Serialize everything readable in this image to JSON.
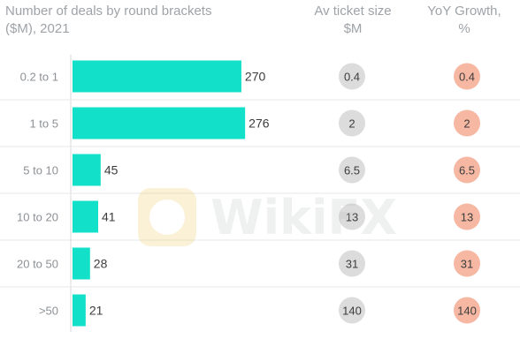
{
  "header": {
    "main_title_line1": "Number of deals by round brackets",
    "main_title_line2": "($M), 2021",
    "ticket_title_line1": "Av ticket size",
    "ticket_title_line2": "$M",
    "growth_title_line1": "YoY Growth,",
    "growth_title_line2": "%"
  },
  "watermark": {
    "text": "WikiFX"
  },
  "colors": {
    "bar": "#12e0c8",
    "ticket_circle": "#dcdcdc",
    "growth_circle": "#f7b8a3",
    "row_divider": "#e5e7ea",
    "axis": "#d7d9dc",
    "header_text": "#9ea3a8",
    "label_text": "#8c9196",
    "value_text": "#3c3c3c"
  },
  "chart_data": {
    "type": "bar",
    "orientation": "horizontal",
    "categories": [
      "0.2 to 1",
      "1 to 5",
      "5 to 10",
      "10 to 20",
      "20 to 50",
      ">50"
    ],
    "series": [
      {
        "values": [
          270,
          276,
          45,
          41,
          28,
          21
        ]
      }
    ],
    "ticket_size": [
      "0.4",
      "2",
      "6.5",
      "13",
      "31",
      "140"
    ],
    "yoy_growth": [
      "0.4",
      "2",
      "6.5",
      "13",
      "31",
      "140"
    ],
    "xlim": [
      0,
      280
    ]
  }
}
